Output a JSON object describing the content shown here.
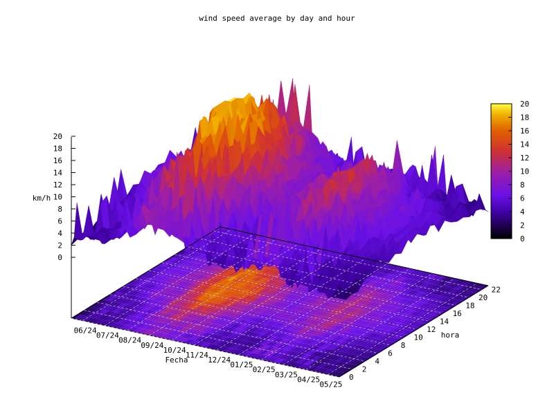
{
  "chart_data": {
    "type": "surface3d",
    "title": "wind speed average by day and hour",
    "xlabel": "Fecha",
    "ylabel": "hora",
    "zlabel": "km/h",
    "x_ticks": [
      "06/24",
      "07/24",
      "08/24",
      "09/24",
      "10/24",
      "11/24",
      "12/24",
      "01/25",
      "02/25",
      "03/25",
      "04/25",
      "05/25"
    ],
    "y_ticks": [
      0,
      2,
      4,
      6,
      8,
      10,
      12,
      14,
      16,
      18,
      20,
      22
    ],
    "z_ticks": [
      0,
      2,
      4,
      6,
      8,
      10,
      12,
      14,
      16,
      18,
      20
    ],
    "zlim": [
      0,
      20
    ],
    "colorbar": {
      "ticks": [
        0,
        2,
        4,
        6,
        8,
        10,
        12,
        14,
        16,
        18,
        20
      ],
      "range": [
        0,
        20
      ],
      "palette": "black-purple-red-yellow"
    },
    "surface_profile": {
      "months": [
        "06/24",
        "07/24",
        "08/24",
        "09/24",
        "10/24",
        "11/24",
        "12/24",
        "01/25",
        "02/25",
        "03/25",
        "04/25",
        "05/25"
      ],
      "typical_kmh": [
        4,
        6,
        8,
        14,
        12,
        8,
        6,
        7,
        9,
        6,
        5,
        4
      ],
      "peak_kmh": [
        10,
        9,
        12,
        19,
        17,
        11,
        9,
        12,
        14,
        11,
        8,
        6
      ]
    },
    "grid": true,
    "projection": "pm3d with base map"
  }
}
